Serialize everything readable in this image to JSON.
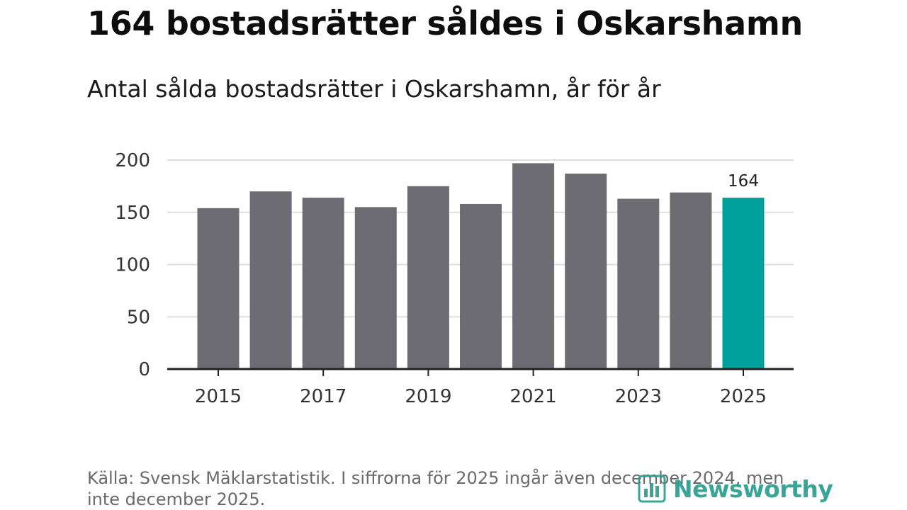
{
  "header": {
    "title": "164 bostadsrätter såldes i Oskarshamn",
    "subtitle": "Antal sålda bostadsrätter i Oskarshamn, år för år"
  },
  "footer": {
    "source": "Källa: Svensk Mäklarstatistik. I siffrorna för 2025 ingår även december 2024, men inte december 2025.",
    "brand": "Newsworthy",
    "brand_icon": "bar-chart-logo-icon"
  },
  "colors": {
    "bar": "#6d6c73",
    "highlight": "#00a19a",
    "grid": "#dddddd",
    "axis": "#222222",
    "brand": "#2a9d8f"
  },
  "chart_data": {
    "type": "bar",
    "x": [
      2015,
      2016,
      2017,
      2018,
      2019,
      2020,
      2021,
      2022,
      2023,
      2024,
      2025
    ],
    "values": [
      154,
      170,
      164,
      155,
      175,
      158,
      197,
      187,
      163,
      169,
      164
    ],
    "xticks": [
      "2015",
      "2017",
      "2019",
      "2021",
      "2023",
      "2025"
    ],
    "yticks": [
      "0",
      "50",
      "100",
      "150",
      "200"
    ],
    "ylim": [
      0,
      200
    ],
    "highlight_index": 10,
    "data_labels": [
      {
        "index": 10,
        "text": "164"
      }
    ],
    "grid": "horizontal"
  }
}
